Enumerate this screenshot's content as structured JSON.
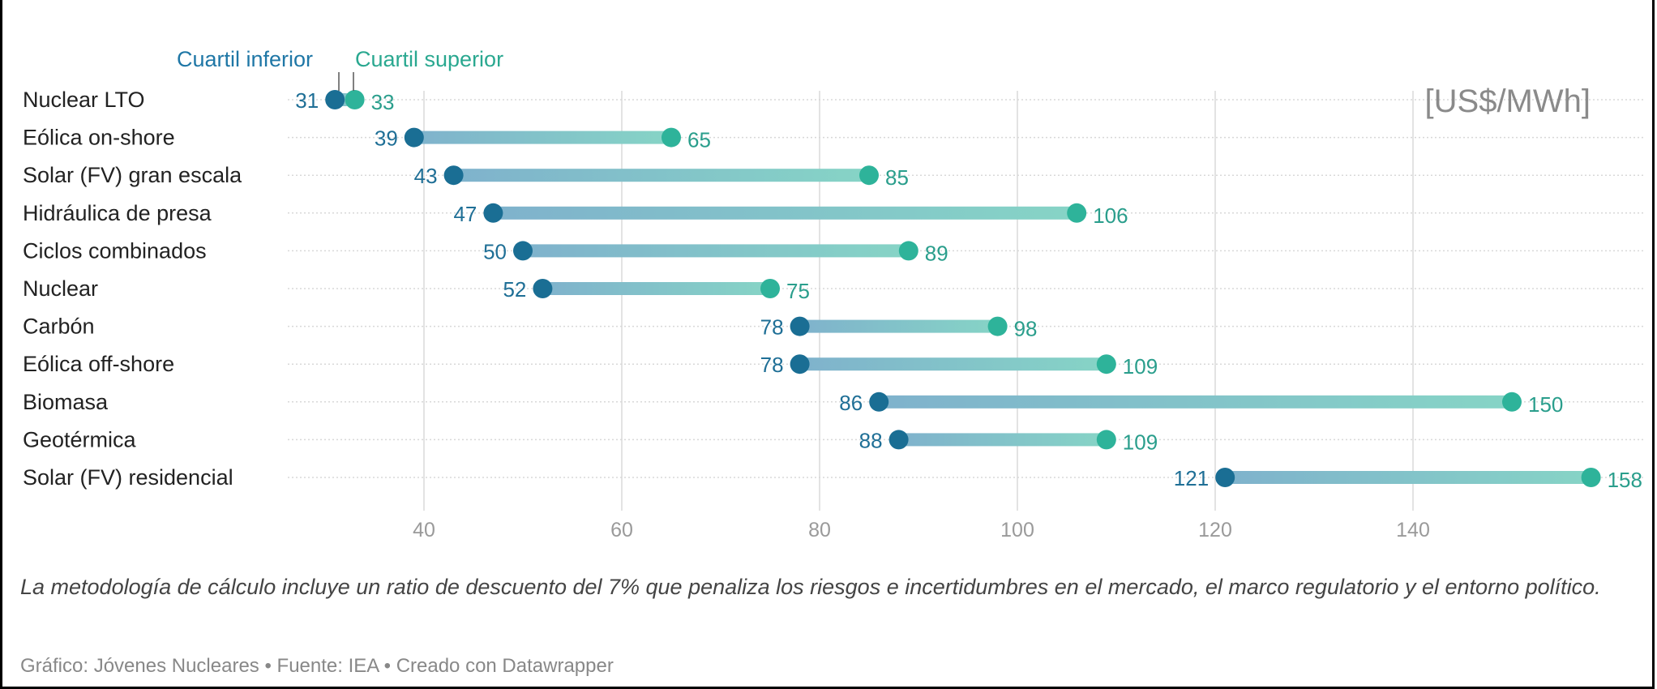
{
  "chart_data": {
    "type": "dumbbell",
    "unit_label": "[US$/MWh]",
    "legend": {
      "low": "Cuartil inferior",
      "high": "Cuartil superior"
    },
    "colors": {
      "low": "#1a6e94",
      "high": "#2eb39a",
      "bar_low": "#7fb2cc",
      "bar_high": "#86d4c6",
      "grid": "#e3e3e3"
    },
    "categories": [
      "Nuclear LTO",
      "Eólica on-shore",
      "Solar (FV) gran escala",
      "Hidráulica de presa",
      "Ciclos combinados",
      "Nuclear",
      "Carbón",
      "Eólica off-shore",
      "Biomasa",
      "Geotérmica",
      "Solar (FV) residencial"
    ],
    "series": [
      {
        "name": "Cuartil inferior",
        "values": [
          31,
          39,
          43,
          47,
          50,
          52,
          78,
          78,
          86,
          88,
          121
        ]
      },
      {
        "name": "Cuartil superior",
        "values": [
          33,
          65,
          85,
          106,
          89,
          75,
          98,
          109,
          150,
          109,
          158
        ]
      }
    ],
    "x_ticks": [
      40,
      60,
      80,
      100,
      120,
      140
    ],
    "xlim": [
      27,
      161
    ],
    "grid": true
  },
  "note": "La metodología de cálculo incluye un ratio de descuento del 7% que penaliza los riesgos e incertidumbres en el mercado, el marco regulatorio y el entorno político.",
  "credit": "Gráfico: Jóvenes Nucleares • Fuente: IEA • Creado con Datawrapper"
}
